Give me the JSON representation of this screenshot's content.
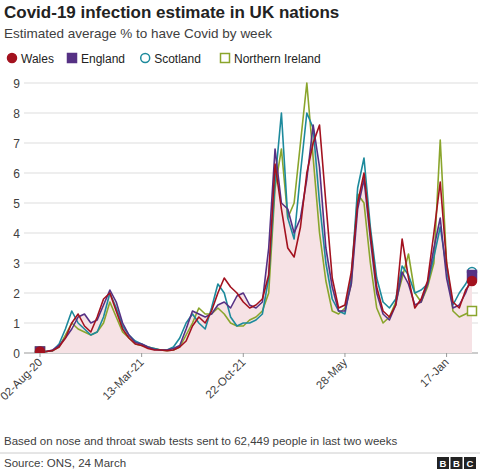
{
  "chart_data": {
    "type": "line",
    "title": "Covid-19 infection estimate in UK nations",
    "subtitle": "Estimated average % to have Covid by week",
    "footnote": "Based on nose and throat swab tests sent to 62,449 people in last two weeks",
    "source": "Source: ONS, 24 March",
    "logo": "BBC",
    "legend": "top-left",
    "grid": true,
    "ylim": [
      0,
      9
    ],
    "yticks": [
      0,
      1,
      2,
      3,
      4,
      5,
      6,
      7,
      8,
      9
    ],
    "categories": [
      "02-Aug-20",
      null,
      null,
      null,
      null,
      null,
      null,
      null,
      null,
      null,
      null,
      null,
      null,
      null,
      null,
      null,
      "13-Mar-21",
      null,
      null,
      null,
      null,
      null,
      null,
      null,
      null,
      null,
      null,
      null,
      null,
      null,
      null,
      null,
      "22-Oct-21",
      null,
      null,
      null,
      null,
      null,
      null,
      null,
      null,
      null,
      null,
      null,
      null,
      null,
      null,
      null,
      "28-May",
      null,
      null,
      null,
      null,
      null,
      null,
      null,
      null,
      null,
      null,
      null,
      null,
      null,
      null,
      null,
      "17-Jan",
      null,
      null,
      null,
      null
    ],
    "series": [
      {
        "name": "Wales",
        "color": "#a3121f",
        "marker": "circle",
        "values": [
          0.05,
          0.05,
          0.08,
          0.2,
          0.5,
          1.0,
          1.3,
          0.9,
          0.7,
          1.2,
          1.8,
          2.0,
          1.4,
          0.8,
          0.5,
          0.3,
          0.25,
          0.15,
          0.1,
          0.1,
          0.08,
          0.1,
          0.2,
          0.4,
          0.9,
          1.2,
          1.0,
          1.4,
          2.0,
          2.5,
          2.2,
          2.0,
          1.7,
          1.5,
          1.6,
          1.8,
          2.6,
          6.3,
          4.8,
          3.5,
          3.2,
          4.2,
          6.0,
          7.0,
          7.6,
          5.0,
          2.5,
          1.5,
          1.6,
          2.7,
          5.0,
          6.0,
          4.0,
          2.2,
          1.4,
          1.2,
          1.6,
          3.8,
          2.5,
          1.5,
          1.8,
          2.4,
          4.0,
          5.7,
          3.0,
          1.7,
          1.5,
          2.1,
          2.4
        ]
      },
      {
        "name": "England",
        "color": "#563184",
        "marker": "square",
        "values": [
          0.05,
          0.05,
          0.1,
          0.25,
          0.5,
          0.8,
          1.2,
          1.3,
          1.0,
          1.1,
          1.6,
          2.1,
          1.7,
          1.0,
          0.6,
          0.35,
          0.3,
          0.2,
          0.12,
          0.1,
          0.1,
          0.15,
          0.25,
          0.8,
          1.4,
          1.3,
          1.2,
          1.3,
          1.6,
          1.7,
          1.5,
          1.9,
          2.0,
          1.6,
          1.5,
          1.7,
          3.5,
          6.8,
          5.0,
          4.8,
          4.0,
          4.5,
          5.8,
          7.6,
          6.2,
          3.5,
          2.2,
          1.4,
          1.4,
          2.3,
          4.8,
          5.8,
          3.8,
          2.0,
          1.3,
          1.1,
          1.6,
          2.7,
          2.3,
          1.6,
          1.7,
          2.3,
          3.5,
          4.5,
          2.5,
          1.5,
          1.6,
          2.0,
          2.6
        ]
      },
      {
        "name": "Scotland",
        "color": "#1d8a9c",
        "marker": "circle-open",
        "values": [
          0.05,
          0.05,
          0.08,
          0.3,
          0.8,
          1.4,
          1.0,
          0.8,
          0.6,
          0.7,
          1.2,
          2.0,
          1.5,
          0.9,
          0.6,
          0.4,
          0.3,
          0.2,
          0.15,
          0.1,
          0.1,
          0.2,
          0.5,
          1.0,
          1.3,
          1.0,
          0.8,
          1.5,
          2.3,
          2.0,
          1.2,
          0.9,
          1.0,
          1.0,
          1.1,
          1.3,
          2.5,
          5.7,
          8.0,
          4.5,
          3.8,
          6.0,
          8.0,
          7.5,
          5.0,
          3.0,
          1.8,
          1.4,
          1.3,
          2.5,
          5.5,
          6.5,
          4.2,
          2.5,
          1.7,
          1.5,
          1.8,
          2.9,
          2.6,
          2.0,
          2.1,
          2.3,
          3.2,
          4.2,
          2.8,
          1.6,
          2.0,
          2.3,
          2.7
        ]
      },
      {
        "name": "Northern Ireland",
        "color": "#8aa52c",
        "marker": "square-open",
        "values": [
          0.05,
          0.05,
          0.08,
          0.2,
          0.6,
          1.0,
          0.8,
          0.7,
          0.6,
          0.7,
          1.0,
          1.7,
          1.2,
          0.7,
          0.5,
          0.3,
          0.25,
          0.2,
          0.15,
          0.1,
          0.08,
          0.1,
          0.2,
          0.6,
          1.0,
          1.5,
          1.3,
          1.3,
          1.5,
          1.3,
          1.0,
          0.9,
          0.9,
          1.1,
          1.2,
          1.4,
          2.0,
          5.5,
          6.8,
          4.5,
          5.0,
          7.0,
          9.0,
          6.5,
          4.0,
          2.4,
          1.4,
          1.3,
          1.5,
          2.3,
          5.3,
          5.0,
          3.0,
          1.5,
          1.0,
          1.2,
          1.7,
          2.5,
          3.3,
          2.0,
          1.7,
          2.2,
          3.0,
          7.1,
          3.0,
          1.4,
          1.2,
          1.3,
          1.4
        ]
      }
    ]
  }
}
